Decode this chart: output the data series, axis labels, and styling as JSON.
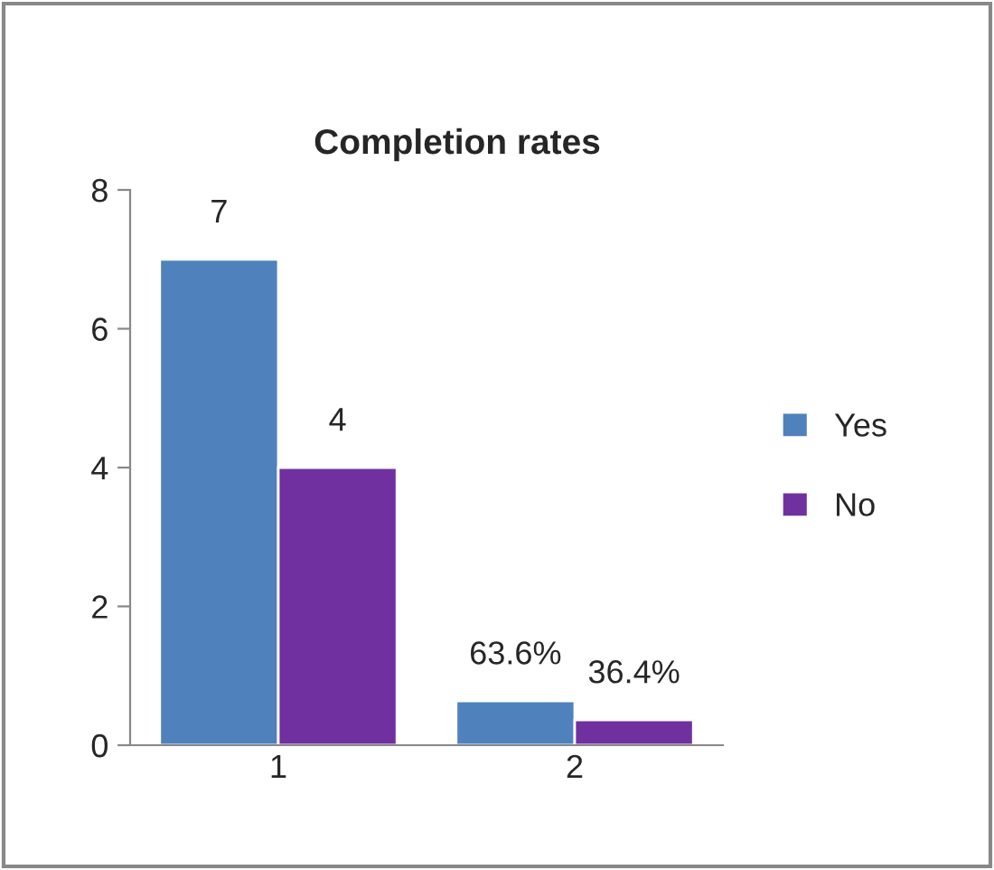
{
  "chart_data": {
    "type": "bar",
    "title": "Completion rates",
    "categories": [
      "1",
      "2"
    ],
    "series": [
      {
        "name": "Yes",
        "color": "#4f81bd",
        "values": [
          7,
          0.636
        ],
        "value_labels": [
          "7",
          "63.6%"
        ]
      },
      {
        "name": "No",
        "color": "#7030a0",
        "values": [
          4,
          0.364
        ],
        "value_labels": [
          "4",
          "36.4%"
        ]
      }
    ],
    "ylim": [
      0,
      8
    ],
    "yticks": [
      0,
      2,
      4,
      6,
      8
    ],
    "grid": false,
    "legend": "right"
  }
}
